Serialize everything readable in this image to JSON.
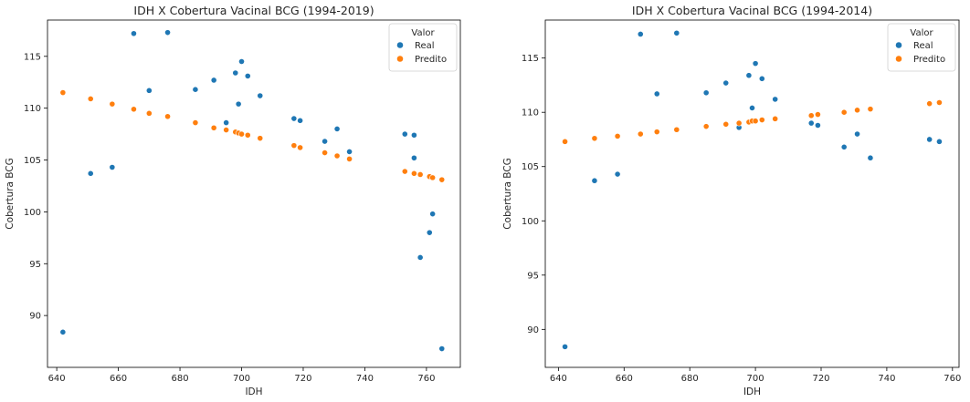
{
  "chart_data": [
    {
      "type": "scatter",
      "title": "IDH X Cobertura Vacinal BCG (1994-2019)",
      "xlabel": "IDH",
      "ylabel": "Cobertura BCG",
      "xlim": [
        637,
        771
      ],
      "ylim": [
        85,
        118.5
      ],
      "xticks": [
        640,
        660,
        680,
        700,
        720,
        740,
        760
      ],
      "yticks": [
        90,
        95,
        100,
        105,
        110,
        115
      ],
      "grid": false,
      "legend": {
        "title": "Valor",
        "placement": "top-right"
      },
      "series": [
        {
          "name": "Real",
          "color": "#1f77b4",
          "points": [
            [
              642,
              88.4
            ],
            [
              651,
              103.7
            ],
            [
              658,
              104.3
            ],
            [
              665,
              117.2
            ],
            [
              670,
              111.7
            ],
            [
              676,
              117.3
            ],
            [
              685,
              111.8
            ],
            [
              691,
              112.7
            ],
            [
              695,
              108.6
            ],
            [
              698,
              113.4
            ],
            [
              699,
              110.4
            ],
            [
              700,
              114.5
            ],
            [
              702,
              113.1
            ],
            [
              706,
              111.2
            ],
            [
              717,
              109.0
            ],
            [
              719,
              108.8
            ],
            [
              727,
              106.8
            ],
            [
              731,
              108.0
            ],
            [
              735,
              105.8
            ],
            [
              753,
              107.5
            ],
            [
              756,
              107.4
            ],
            [
              756,
              105.2
            ],
            [
              758,
              95.6
            ],
            [
              761,
              98.0
            ],
            [
              762,
              99.8
            ],
            [
              765,
              86.8
            ]
          ]
        },
        {
          "name": "Predito",
          "color": "#ff7f0e",
          "points": [
            [
              642,
              111.5
            ],
            [
              651,
              110.9
            ],
            [
              658,
              110.4
            ],
            [
              665,
              109.9
            ],
            [
              670,
              109.5
            ],
            [
              676,
              109.2
            ],
            [
              685,
              108.6
            ],
            [
              691,
              108.1
            ],
            [
              695,
              107.9
            ],
            [
              698,
              107.7
            ],
            [
              699,
              107.6
            ],
            [
              700,
              107.5
            ],
            [
              702,
              107.4
            ],
            [
              706,
              107.1
            ],
            [
              717,
              106.4
            ],
            [
              719,
              106.2
            ],
            [
              727,
              105.7
            ],
            [
              731,
              105.4
            ],
            [
              735,
              105.1
            ],
            [
              753,
              103.9
            ],
            [
              756,
              103.7
            ],
            [
              758,
              103.6
            ],
            [
              761,
              103.4
            ],
            [
              762,
              103.3
            ],
            [
              765,
              103.1
            ]
          ]
        }
      ]
    },
    {
      "type": "scatter",
      "title": "IDH X Cobertura Vacinal BCG (1994-2014)",
      "xlabel": "IDH",
      "ylabel": "Cobertura BCG",
      "xlim": [
        636,
        762
      ],
      "ylim": [
        86.5,
        118.5
      ],
      "xticks": [
        640,
        660,
        680,
        700,
        720,
        740,
        760
      ],
      "yticks": [
        90,
        95,
        100,
        105,
        110,
        115
      ],
      "grid": false,
      "legend": {
        "title": "Valor",
        "placement": "top-right"
      },
      "series": [
        {
          "name": "Real",
          "color": "#1f77b4",
          "points": [
            [
              642,
              88.4
            ],
            [
              651,
              103.7
            ],
            [
              658,
              104.3
            ],
            [
              665,
              117.2
            ],
            [
              670,
              111.7
            ],
            [
              676,
              117.3
            ],
            [
              685,
              111.8
            ],
            [
              691,
              112.7
            ],
            [
              695,
              108.6
            ],
            [
              698,
              113.4
            ],
            [
              699,
              110.4
            ],
            [
              700,
              114.5
            ],
            [
              702,
              113.1
            ],
            [
              706,
              111.2
            ],
            [
              717,
              109.0
            ],
            [
              719,
              108.8
            ],
            [
              727,
              106.8
            ],
            [
              731,
              108.0
            ],
            [
              735,
              105.8
            ],
            [
              753,
              107.5
            ],
            [
              756,
              107.3
            ]
          ]
        },
        {
          "name": "Predito",
          "color": "#ff7f0e",
          "points": [
            [
              642,
              107.3
            ],
            [
              651,
              107.6
            ],
            [
              658,
              107.8
            ],
            [
              665,
              108.0
            ],
            [
              670,
              108.2
            ],
            [
              676,
              108.4
            ],
            [
              685,
              108.7
            ],
            [
              691,
              108.9
            ],
            [
              695,
              109.0
            ],
            [
              698,
              109.1
            ],
            [
              699,
              109.2
            ],
            [
              700,
              109.2
            ],
            [
              702,
              109.3
            ],
            [
              706,
              109.4
            ],
            [
              717,
              109.7
            ],
            [
              719,
              109.8
            ],
            [
              727,
              110.0
            ],
            [
              731,
              110.2
            ],
            [
              735,
              110.3
            ],
            [
              753,
              110.8
            ],
            [
              756,
              110.9
            ]
          ]
        }
      ]
    }
  ]
}
